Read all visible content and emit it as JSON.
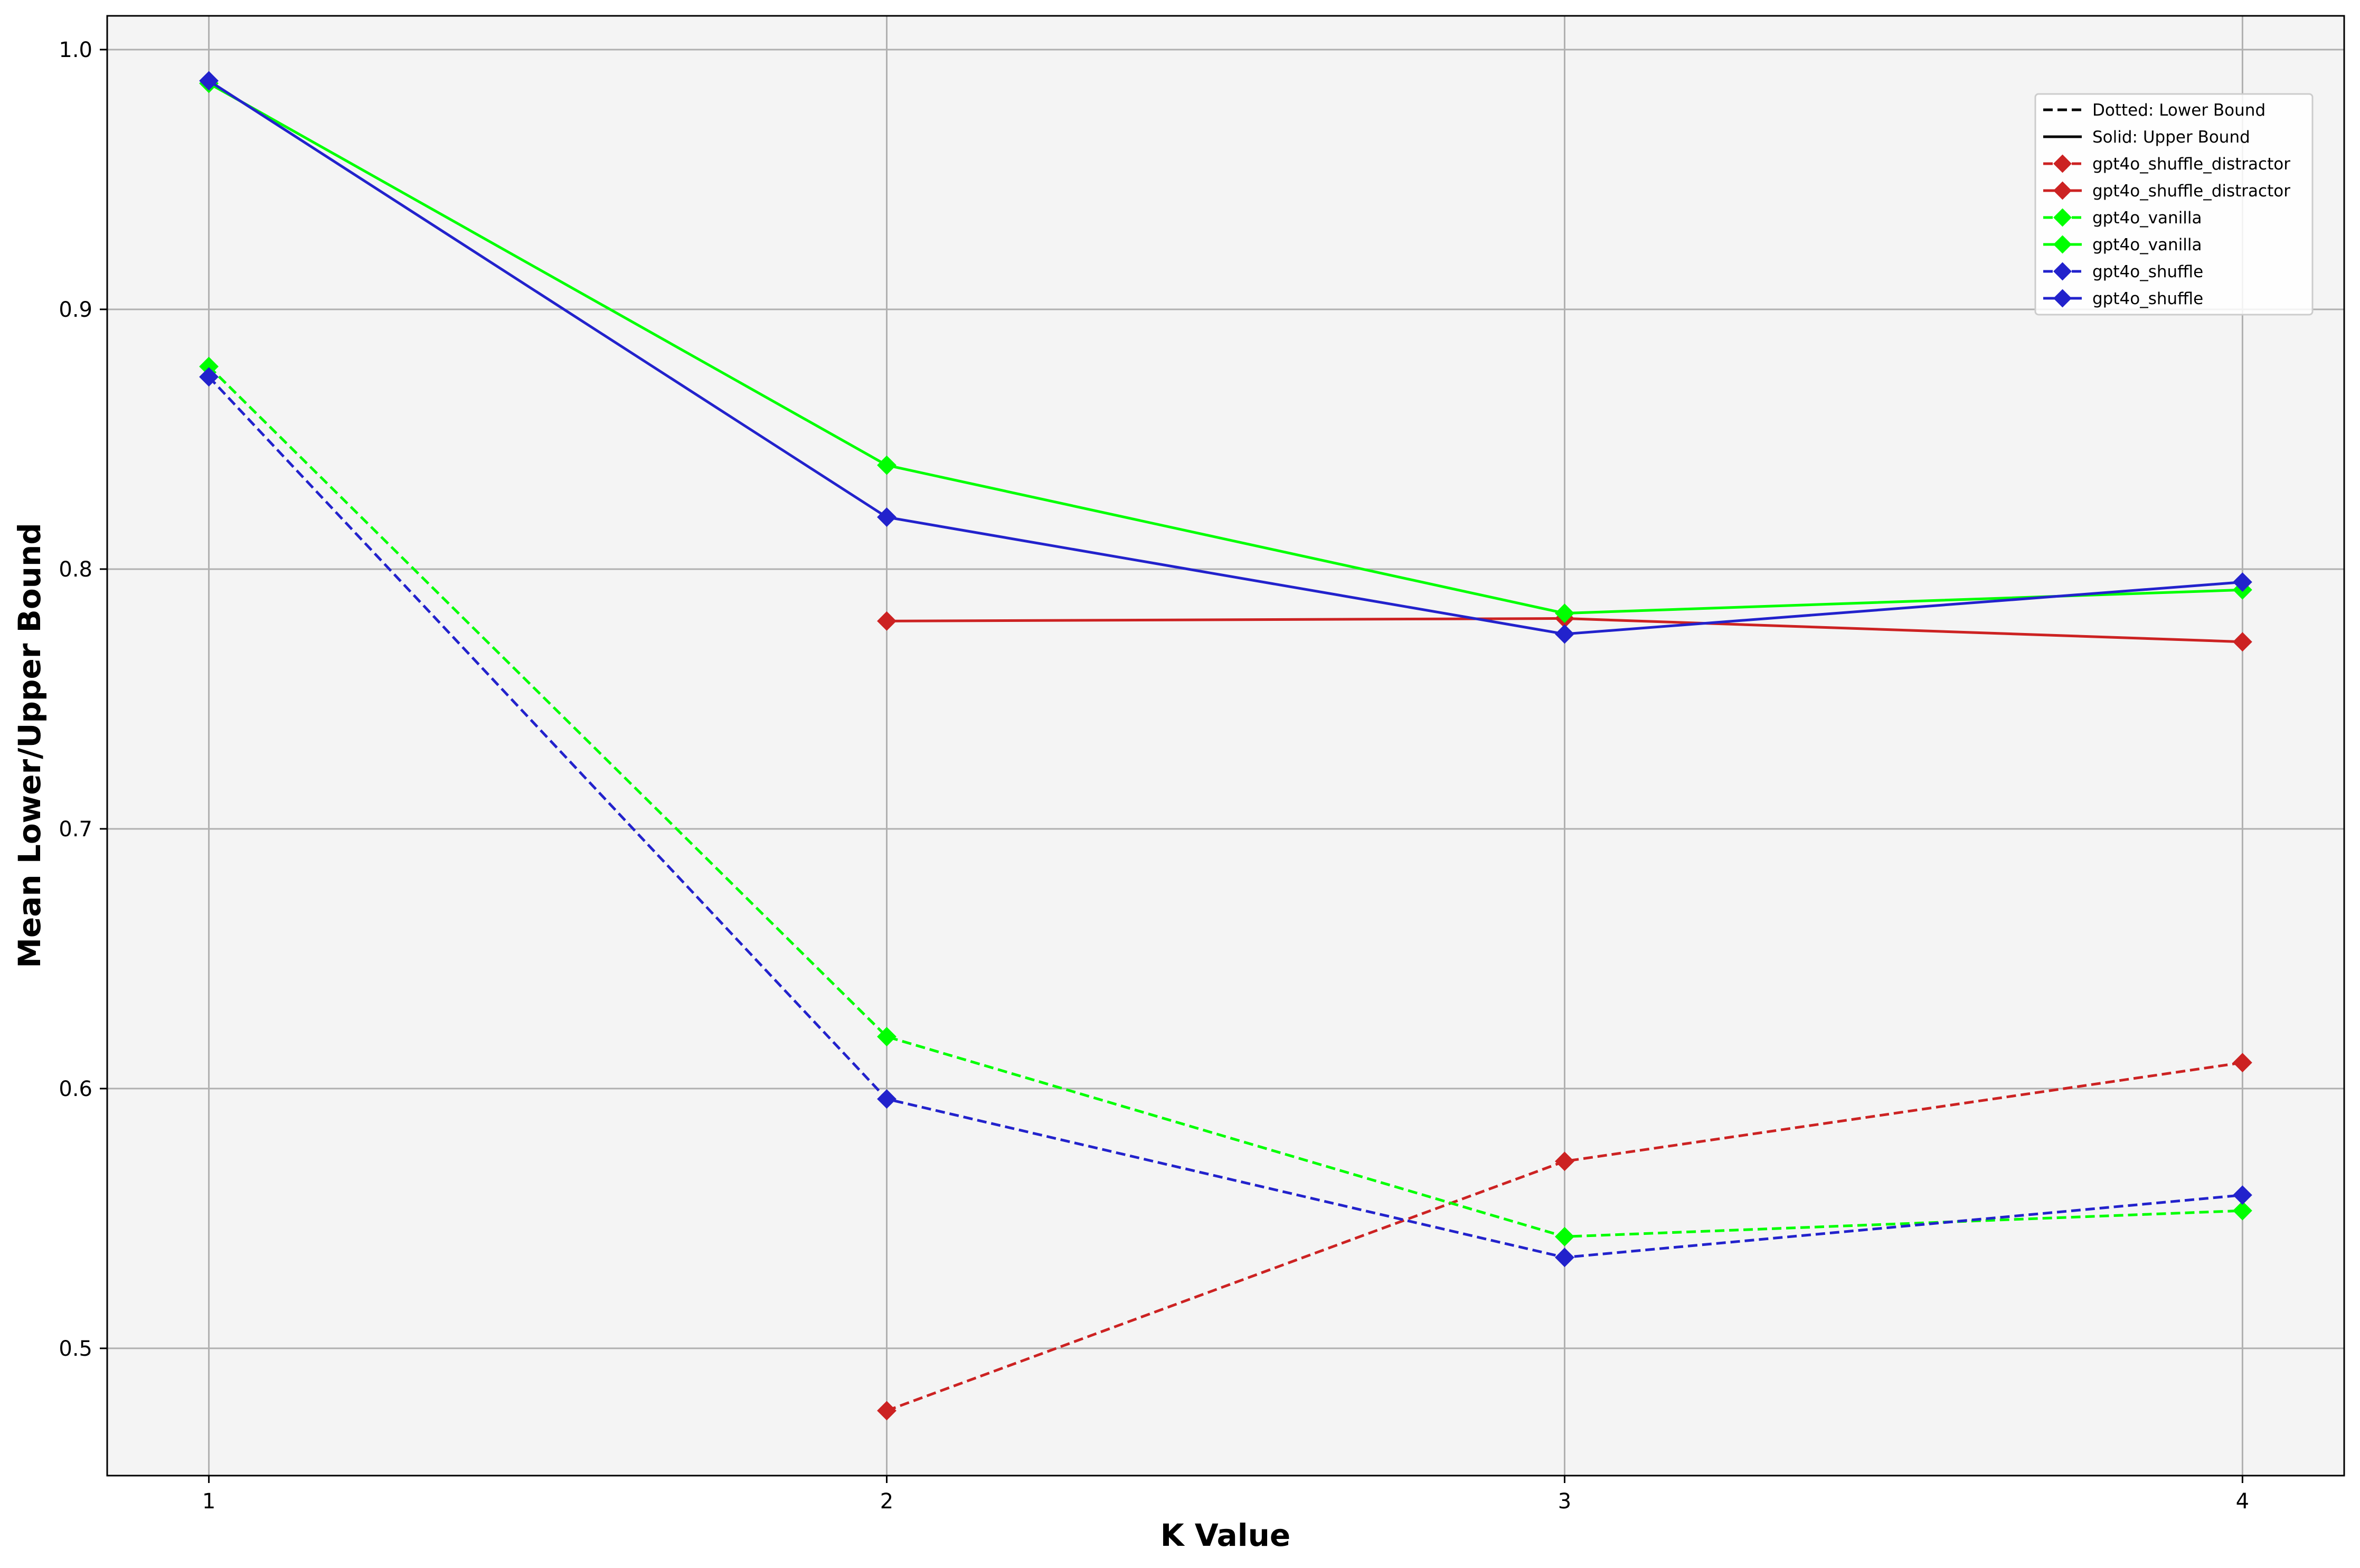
{
  "chart_data": {
    "type": "line",
    "title": "",
    "xlabel": "K Value",
    "ylabel": "Mean Lower/Upper Bound",
    "xlim": [
      0.85,
      4.15
    ],
    "ylim": [
      0.451,
      1.013
    ],
    "xticks": [
      1,
      2,
      3,
      4
    ],
    "yticks": [
      0.5,
      0.6,
      0.7,
      0.8,
      0.9,
      1.0
    ],
    "grid": true,
    "legend_position": "top-right",
    "legend_notes": [
      {
        "label": "Dotted: Lower Bound",
        "style": "dashed"
      },
      {
        "label": "Solid: Upper Bound",
        "style": "solid"
      }
    ],
    "series": [
      {
        "name": "gpt4o_shuffle_distractor",
        "bound": "lower",
        "style": "dashed",
        "color": "#cc2222",
        "x": [
          2,
          3,
          4
        ],
        "values": [
          0.476,
          0.572,
          0.61
        ]
      },
      {
        "name": "gpt4o_shuffle_distractor",
        "bound": "upper",
        "style": "solid",
        "color": "#cc2222",
        "x": [
          2,
          3,
          4
        ],
        "values": [
          0.78,
          0.781,
          0.772
        ]
      },
      {
        "name": "gpt4o_vanilla",
        "bound": "lower",
        "style": "dashed",
        "color": "#00ff00",
        "x": [
          1,
          2,
          3,
          4
        ],
        "values": [
          0.878,
          0.62,
          0.543,
          0.553
        ]
      },
      {
        "name": "gpt4o_vanilla",
        "bound": "upper",
        "style": "solid",
        "color": "#00ff00",
        "x": [
          1,
          2,
          3,
          4
        ],
        "values": [
          0.987,
          0.84,
          0.783,
          0.792
        ]
      },
      {
        "name": "gpt4o_shuffle",
        "bound": "lower",
        "style": "dashed",
        "color": "#2222cc",
        "x": [
          1,
          2,
          3,
          4
        ],
        "values": [
          0.874,
          0.596,
          0.535,
          0.559
        ]
      },
      {
        "name": "gpt4o_shuffle",
        "bound": "upper",
        "style": "solid",
        "color": "#2222cc",
        "x": [
          1,
          2,
          3,
          4
        ],
        "values": [
          0.988,
          0.82,
          0.775,
          0.795
        ]
      }
    ]
  }
}
